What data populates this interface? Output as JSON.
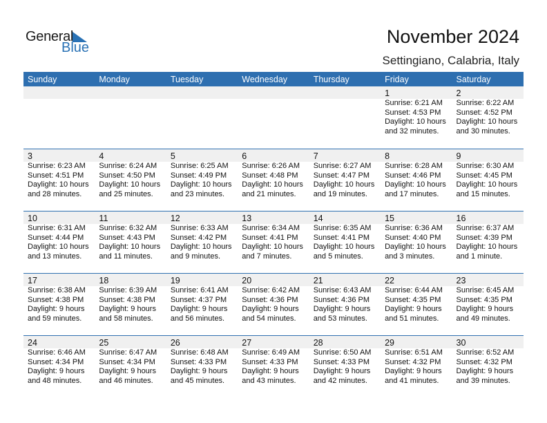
{
  "logo": {
    "line1": "General",
    "line2": "Blue"
  },
  "title": "November 2024",
  "location": "Settingiano, Calabria, Italy",
  "colors": {
    "accent": "#2e6fb0",
    "band": "#f0f0f0"
  },
  "days": [
    "Sunday",
    "Monday",
    "Tuesday",
    "Wednesday",
    "Thursday",
    "Friday",
    "Saturday"
  ],
  "weeks": [
    [
      null,
      null,
      null,
      null,
      null,
      {
        "day": "1",
        "sunrise": "Sunrise: 6:21 AM",
        "sunset": "Sunset: 4:53 PM",
        "daylight1": "Daylight: 10 hours",
        "daylight2": "and 32 minutes."
      },
      {
        "day": "2",
        "sunrise": "Sunrise: 6:22 AM",
        "sunset": "Sunset: 4:52 PM",
        "daylight1": "Daylight: 10 hours",
        "daylight2": "and 30 minutes."
      }
    ],
    [
      {
        "day": "3",
        "sunrise": "Sunrise: 6:23 AM",
        "sunset": "Sunset: 4:51 PM",
        "daylight1": "Daylight: 10 hours",
        "daylight2": "and 28 minutes."
      },
      {
        "day": "4",
        "sunrise": "Sunrise: 6:24 AM",
        "sunset": "Sunset: 4:50 PM",
        "daylight1": "Daylight: 10 hours",
        "daylight2": "and 25 minutes."
      },
      {
        "day": "5",
        "sunrise": "Sunrise: 6:25 AM",
        "sunset": "Sunset: 4:49 PM",
        "daylight1": "Daylight: 10 hours",
        "daylight2": "and 23 minutes."
      },
      {
        "day": "6",
        "sunrise": "Sunrise: 6:26 AM",
        "sunset": "Sunset: 4:48 PM",
        "daylight1": "Daylight: 10 hours",
        "daylight2": "and 21 minutes."
      },
      {
        "day": "7",
        "sunrise": "Sunrise: 6:27 AM",
        "sunset": "Sunset: 4:47 PM",
        "daylight1": "Daylight: 10 hours",
        "daylight2": "and 19 minutes."
      },
      {
        "day": "8",
        "sunrise": "Sunrise: 6:28 AM",
        "sunset": "Sunset: 4:46 PM",
        "daylight1": "Daylight: 10 hours",
        "daylight2": "and 17 minutes."
      },
      {
        "day": "9",
        "sunrise": "Sunrise: 6:30 AM",
        "sunset": "Sunset: 4:45 PM",
        "daylight1": "Daylight: 10 hours",
        "daylight2": "and 15 minutes."
      }
    ],
    [
      {
        "day": "10",
        "sunrise": "Sunrise: 6:31 AM",
        "sunset": "Sunset: 4:44 PM",
        "daylight1": "Daylight: 10 hours",
        "daylight2": "and 13 minutes."
      },
      {
        "day": "11",
        "sunrise": "Sunrise: 6:32 AM",
        "sunset": "Sunset: 4:43 PM",
        "daylight1": "Daylight: 10 hours",
        "daylight2": "and 11 minutes."
      },
      {
        "day": "12",
        "sunrise": "Sunrise: 6:33 AM",
        "sunset": "Sunset: 4:42 PM",
        "daylight1": "Daylight: 10 hours",
        "daylight2": "and 9 minutes."
      },
      {
        "day": "13",
        "sunrise": "Sunrise: 6:34 AM",
        "sunset": "Sunset: 4:41 PM",
        "daylight1": "Daylight: 10 hours",
        "daylight2": "and 7 minutes."
      },
      {
        "day": "14",
        "sunrise": "Sunrise: 6:35 AM",
        "sunset": "Sunset: 4:41 PM",
        "daylight1": "Daylight: 10 hours",
        "daylight2": "and 5 minutes."
      },
      {
        "day": "15",
        "sunrise": "Sunrise: 6:36 AM",
        "sunset": "Sunset: 4:40 PM",
        "daylight1": "Daylight: 10 hours",
        "daylight2": "and 3 minutes."
      },
      {
        "day": "16",
        "sunrise": "Sunrise: 6:37 AM",
        "sunset": "Sunset: 4:39 PM",
        "daylight1": "Daylight: 10 hours",
        "daylight2": "and 1 minute."
      }
    ],
    [
      {
        "day": "17",
        "sunrise": "Sunrise: 6:38 AM",
        "sunset": "Sunset: 4:38 PM",
        "daylight1": "Daylight: 9 hours",
        "daylight2": "and 59 minutes."
      },
      {
        "day": "18",
        "sunrise": "Sunrise: 6:39 AM",
        "sunset": "Sunset: 4:38 PM",
        "daylight1": "Daylight: 9 hours",
        "daylight2": "and 58 minutes."
      },
      {
        "day": "19",
        "sunrise": "Sunrise: 6:41 AM",
        "sunset": "Sunset: 4:37 PM",
        "daylight1": "Daylight: 9 hours",
        "daylight2": "and 56 minutes."
      },
      {
        "day": "20",
        "sunrise": "Sunrise: 6:42 AM",
        "sunset": "Sunset: 4:36 PM",
        "daylight1": "Daylight: 9 hours",
        "daylight2": "and 54 minutes."
      },
      {
        "day": "21",
        "sunrise": "Sunrise: 6:43 AM",
        "sunset": "Sunset: 4:36 PM",
        "daylight1": "Daylight: 9 hours",
        "daylight2": "and 53 minutes."
      },
      {
        "day": "22",
        "sunrise": "Sunrise: 6:44 AM",
        "sunset": "Sunset: 4:35 PM",
        "daylight1": "Daylight: 9 hours",
        "daylight2": "and 51 minutes."
      },
      {
        "day": "23",
        "sunrise": "Sunrise: 6:45 AM",
        "sunset": "Sunset: 4:35 PM",
        "daylight1": "Daylight: 9 hours",
        "daylight2": "and 49 minutes."
      }
    ],
    [
      {
        "day": "24",
        "sunrise": "Sunrise: 6:46 AM",
        "sunset": "Sunset: 4:34 PM",
        "daylight1": "Daylight: 9 hours",
        "daylight2": "and 48 minutes."
      },
      {
        "day": "25",
        "sunrise": "Sunrise: 6:47 AM",
        "sunset": "Sunset: 4:34 PM",
        "daylight1": "Daylight: 9 hours",
        "daylight2": "and 46 minutes."
      },
      {
        "day": "26",
        "sunrise": "Sunrise: 6:48 AM",
        "sunset": "Sunset: 4:33 PM",
        "daylight1": "Daylight: 9 hours",
        "daylight2": "and 45 minutes."
      },
      {
        "day": "27",
        "sunrise": "Sunrise: 6:49 AM",
        "sunset": "Sunset: 4:33 PM",
        "daylight1": "Daylight: 9 hours",
        "daylight2": "and 43 minutes."
      },
      {
        "day": "28",
        "sunrise": "Sunrise: 6:50 AM",
        "sunset": "Sunset: 4:33 PM",
        "daylight1": "Daylight: 9 hours",
        "daylight2": "and 42 minutes."
      },
      {
        "day": "29",
        "sunrise": "Sunrise: 6:51 AM",
        "sunset": "Sunset: 4:32 PM",
        "daylight1": "Daylight: 9 hours",
        "daylight2": "and 41 minutes."
      },
      {
        "day": "30",
        "sunrise": "Sunrise: 6:52 AM",
        "sunset": "Sunset: 4:32 PM",
        "daylight1": "Daylight: 9 hours",
        "daylight2": "and 39 minutes."
      }
    ]
  ]
}
